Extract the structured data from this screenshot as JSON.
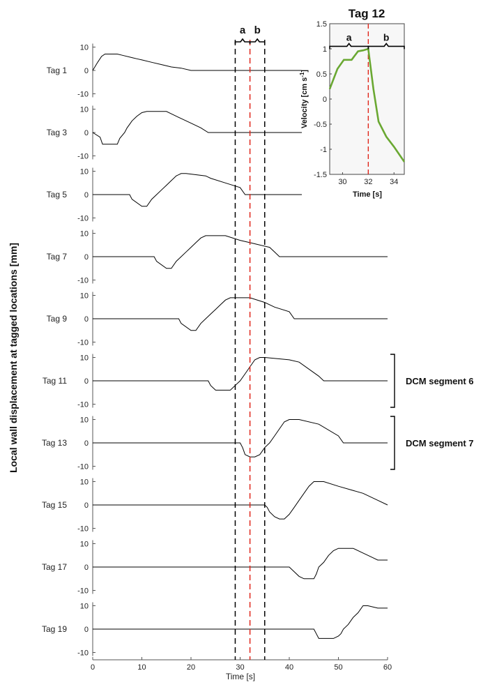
{
  "chart_data": [
    {
      "type": "line",
      "title": "",
      "xlabel": "Time [s]",
      "ylabel": "Local wall displacement at tagged locations [mm]",
      "xlim": [
        0,
        60
      ],
      "xticks": [
        "0",
        "10",
        "20",
        "30",
        "40",
        "50",
        "60"
      ],
      "ylim": [
        -12,
        12
      ],
      "yticks": [
        "10",
        "0",
        "-10"
      ],
      "series_color": "#000000",
      "series": [
        {
          "name": "Tag 1",
          "x": [
            0,
            1,
            1.8,
            2.5,
            5,
            6,
            8,
            9,
            10,
            12,
            14,
            16,
            18,
            20,
            60
          ],
          "y": [
            0,
            3.5,
            6,
            7,
            7,
            6.5,
            5.5,
            5,
            4.5,
            3.5,
            2.5,
            1.5,
            1,
            0,
            0
          ]
        },
        {
          "name": "Tag 3",
          "x": [
            0,
            1.5,
            2,
            5,
            5.5,
            6.5,
            7,
            7.5,
            8,
            9,
            10,
            11,
            12.5,
            15,
            16,
            17,
            18,
            20,
            22,
            23.5,
            60
          ],
          "y": [
            0,
            -2,
            -5,
            -5,
            -2.5,
            0,
            2,
            3.5,
            5,
            7,
            8.5,
            9,
            9,
            9,
            8,
            7,
            6,
            4,
            2,
            0,
            0
          ]
        },
        {
          "name": "Tag 5",
          "x": [
            0,
            7.5,
            8,
            10,
            11,
            12,
            13,
            14,
            15,
            16,
            17,
            18,
            19,
            23,
            24,
            27,
            30,
            31,
            60
          ],
          "y": [
            0,
            0,
            -2,
            -5,
            -5,
            -2,
            0,
            2,
            4,
            6,
            8,
            9,
            9,
            8,
            7,
            5,
            3,
            0,
            0
          ]
        },
        {
          "name": "Tag 7",
          "x": [
            0,
            12.5,
            13,
            15,
            16,
            17,
            18,
            19,
            20,
            21,
            22,
            23,
            24,
            27,
            30,
            32,
            36,
            37,
            38,
            60
          ],
          "y": [
            0,
            0,
            -2,
            -5,
            -5,
            -2,
            0,
            2,
            4,
            6,
            8,
            9,
            9,
            9,
            7,
            6,
            4,
            2,
            0,
            0
          ]
        },
        {
          "name": "Tag 9",
          "x": [
            0,
            17.5,
            18,
            20,
            21,
            22,
            23,
            24,
            25,
            26,
            27,
            28,
            29,
            32,
            35,
            37,
            40,
            41,
            60
          ],
          "y": [
            0,
            0,
            -2,
            -5,
            -5,
            -2,
            0,
            2,
            4,
            6,
            8,
            9,
            9,
            9,
            7,
            5,
            3,
            0,
            0
          ]
        },
        {
          "name": "Tag 11",
          "x": [
            0,
            23.5,
            24,
            25,
            26,
            28,
            29,
            30,
            31,
            32,
            33,
            34,
            35,
            40,
            42,
            46,
            47,
            60
          ],
          "y": [
            0,
            0,
            -2,
            -4,
            -4,
            -4,
            -2,
            0,
            3,
            6,
            9,
            10,
            10,
            9,
            8,
            2,
            0,
            0
          ]
        },
        {
          "name": "Tag 13",
          "x": [
            0,
            30,
            30.5,
            31,
            32,
            33,
            34,
            35,
            36,
            37,
            38,
            39,
            40,
            42,
            46,
            50,
            51,
            60
          ],
          "y": [
            0,
            0,
            -2,
            -5,
            -6,
            -6,
            -5,
            -2,
            0,
            3,
            6,
            9,
            10,
            10,
            8,
            3,
            0,
            0
          ]
        },
        {
          "name": "Tag 15",
          "x": [
            0,
            35,
            35.5,
            36,
            37,
            38,
            39,
            40,
            41,
            42,
            43,
            44,
            45,
            47,
            50,
            55,
            58,
            60
          ],
          "y": [
            0,
            0,
            -1,
            -3,
            -5,
            -6,
            -6,
            -4,
            -1,
            2,
            5,
            8,
            10,
            10,
            8,
            5,
            2,
            0
          ]
        },
        {
          "name": "Tag 17",
          "x": [
            0,
            40,
            41,
            42,
            43,
            45,
            45.5,
            46,
            47,
            48,
            49,
            50,
            53,
            55,
            57,
            58,
            60
          ],
          "y": [
            0,
            0,
            -2,
            -4,
            -5,
            -5,
            -3,
            0,
            2,
            5,
            7,
            8,
            8,
            6,
            4,
            3,
            3
          ]
        },
        {
          "name": "Tag 19",
          "x": [
            0,
            45,
            45.5,
            46,
            47,
            49,
            50,
            50.5,
            51,
            52,
            53,
            54,
            55,
            56,
            58,
            60
          ],
          "y": [
            0,
            0,
            -2,
            -4,
            -4,
            -4,
            -3,
            -2,
            0,
            2,
            5,
            7,
            10,
            10,
            9,
            9
          ]
        }
      ],
      "annotations": {
        "vlines_black_x": [
          29,
          35
        ],
        "vline_red_x": 32,
        "interval_a": "a",
        "interval_b": "b",
        "brackets": [
          {
            "label": "DCM segment 6",
            "tag": "Tag 11"
          },
          {
            "label": "DCM segment 7",
            "tag": "Tag 13"
          }
        ]
      }
    },
    {
      "type": "line",
      "title": "Tag 12",
      "xlabel": "Time [s]",
      "ylabel": "Velocity [cm s",
      "ylabel_sup": "-1",
      "ylabel_end": "]",
      "xlim": [
        29,
        34.8
      ],
      "xticks": [
        "30",
        "32",
        "34"
      ],
      "ylim": [
        -1.5,
        1.5
      ],
      "yticks": [
        "1.5",
        "1",
        "0.5",
        "0",
        "-0.5",
        "-1",
        "-1.5"
      ],
      "grid": false,
      "series_color": "#6aa832",
      "red_line_x": 32,
      "interval_a": "a",
      "interval_b": "b",
      "series": [
        {
          "name": "",
          "x": [
            29,
            29.6,
            30.1,
            30.7,
            31.2,
            31.6,
            32,
            32.4,
            32.8,
            33.4,
            34,
            34.8
          ],
          "y": [
            0.2,
            0.6,
            0.78,
            0.78,
            0.95,
            0.97,
            1.0,
            0.2,
            -0.45,
            -0.75,
            -0.95,
            -1.25
          ]
        }
      ]
    }
  ]
}
